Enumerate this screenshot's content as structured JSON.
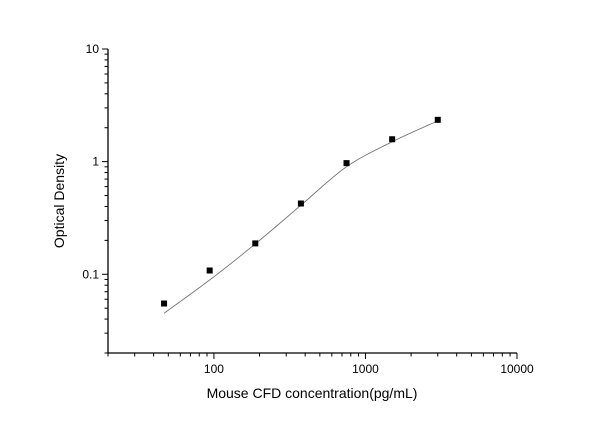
{
  "chart_data": {
    "type": "scatter",
    "title": "",
    "xlabel": "Mouse CFD concentration(pg/mL)",
    "ylabel": "Optical Density",
    "xscale": "log",
    "yscale": "log",
    "xlim": [
      20,
      10000
    ],
    "ylim": [
      0.02,
      10
    ],
    "xticks": [
      100,
      1000,
      10000
    ],
    "xtick_labels": [
      "100",
      "1000",
      "10000"
    ],
    "yticks": [
      0.1,
      1,
      10
    ],
    "ytick_labels": [
      "0.1",
      "1",
      "10"
    ],
    "grid": false,
    "legend": "none",
    "series": [
      {
        "marker": "square",
        "color": "#000000",
        "x": [
          46.875,
          93.75,
          187.5,
          375,
          750,
          1500,
          3000
        ],
        "y": [
          0.055,
          0.108,
          0.188,
          0.425,
          0.97,
          1.58,
          2.35
        ]
      }
    ],
    "fit_curve": {
      "color": "#777777",
      "x": [
        46.875,
        100,
        200,
        375,
        750,
        1500,
        3000
      ],
      "y": [
        0.045,
        0.095,
        0.2,
        0.41,
        0.9,
        1.5,
        2.3
      ]
    }
  }
}
